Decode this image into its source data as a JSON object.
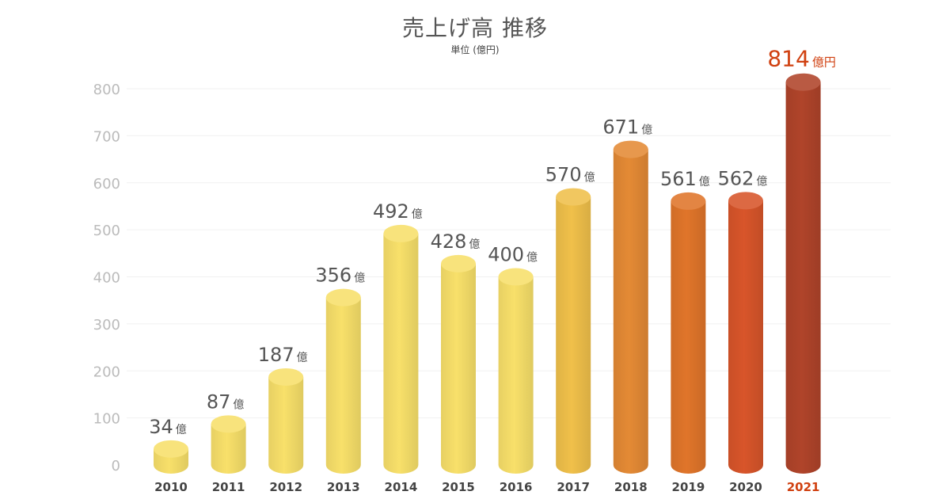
{
  "chart_data": {
    "type": "bar",
    "title": "売上げ高 推移",
    "subtitle": "単位 (億円)",
    "categories": [
      "2010",
      "2011",
      "2012",
      "2013",
      "2014",
      "2015",
      "2016",
      "2017",
      "2018",
      "2019",
      "2020",
      "2021"
    ],
    "values": [
      34,
      87,
      187,
      356,
      492,
      428,
      400,
      570,
      671,
      561,
      562,
      814
    ],
    "value_labels": [
      "34",
      "87",
      "187",
      "356",
      "492",
      "428",
      "400",
      "570",
      "671",
      "561",
      "562",
      "814"
    ],
    "value_unit_labels": [
      "億",
      "億",
      "億",
      "億",
      "億",
      "億",
      "億",
      "億",
      "億",
      "億",
      "億",
      "億円"
    ],
    "y_ticks": [
      0,
      100,
      200,
      300,
      400,
      500,
      600,
      700,
      800
    ],
    "ylim": [
      0,
      800
    ],
    "grid": true,
    "legend": "none",
    "bar_style": "3d-cylinder",
    "colors": [
      "#F8E06A",
      "#F8E06A",
      "#F8E06A",
      "#F8E06A",
      "#F8E06A",
      "#F8E06A",
      "#F8E06A",
      "#F0C04A",
      "#E48A35",
      "#E0752A",
      "#D8552A",
      "#B0442A"
    ],
    "label_colors": {
      "default": "#555555",
      "highlight": "#D04010"
    },
    "tick_label_color": "#bbbbbb",
    "category_label_color": "#444444",
    "highlight_category": "2021"
  }
}
